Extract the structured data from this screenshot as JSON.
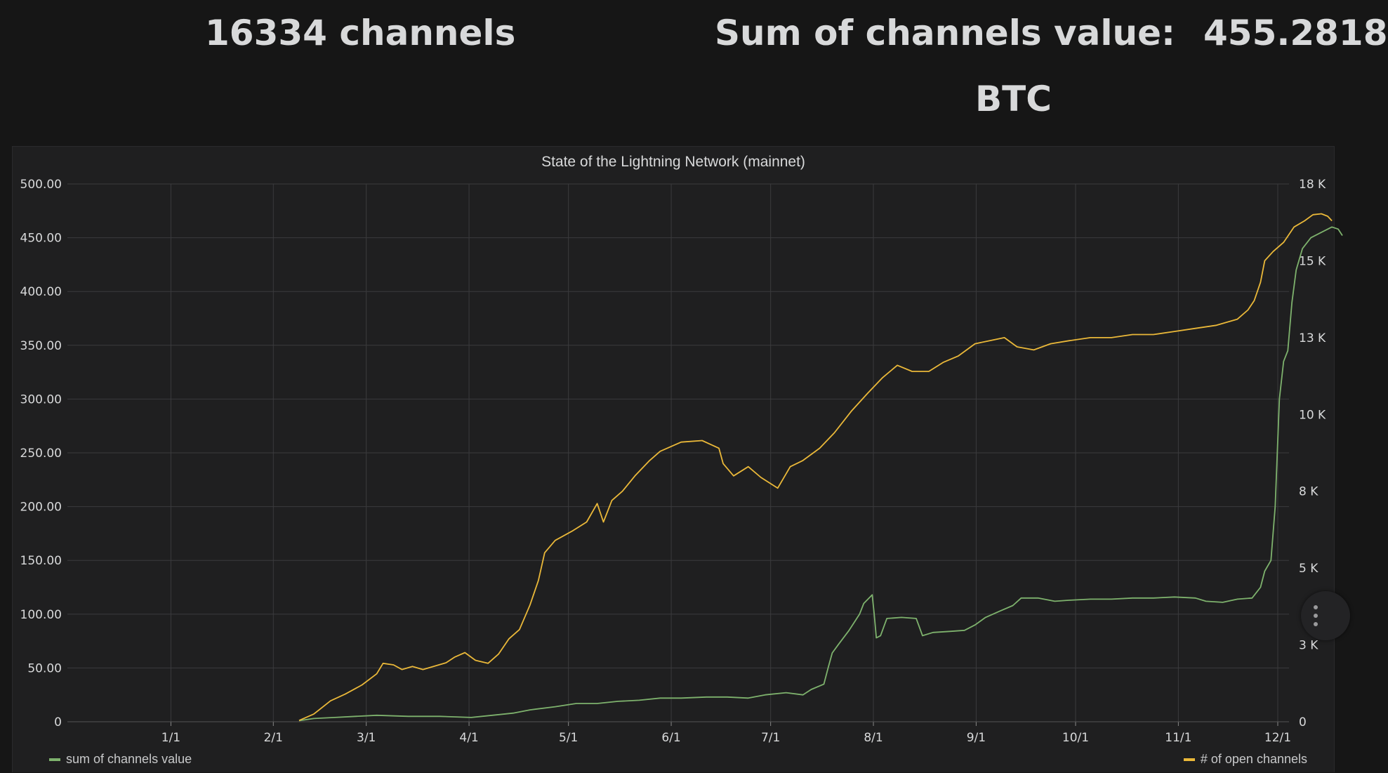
{
  "stats": {
    "channel_count_text": "16334 channels",
    "sum_label": "Sum of channels value:",
    "sum_value": "455.2818",
    "sum_unit": "BTC"
  },
  "colors": {
    "green": "#7eb26d",
    "yellow": "#eab839",
    "grid": "#3b3b3d",
    "text": "#d8d9da"
  },
  "chart_data": {
    "type": "line",
    "title": "State of the Lightning Network (mainnet)",
    "x_ticks": [
      "1/1",
      "2/1",
      "3/1",
      "4/1",
      "5/1",
      "6/1",
      "7/1",
      "8/1",
      "9/1",
      "10/1",
      "11/1",
      "12/1"
    ],
    "y_left_ticks": [
      "0",
      "50.00",
      "100.00",
      "150.00",
      "200.00",
      "250.00",
      "300.00",
      "350.00",
      "400.00",
      "450.00",
      "500.00"
    ],
    "y_left_range": [
      0,
      500
    ],
    "y_right_ticks": [
      "0",
      "3 K",
      "5 K",
      "8 K",
      "10 K",
      "13 K",
      "15 K",
      "18 K"
    ],
    "y_right_range": [
      0,
      17500
    ],
    "x_range_days": [
      0,
      334
    ],
    "series": [
      {
        "name": "sum of channels value",
        "axis": "left",
        "color": "#7eb26d",
        "points": [
          [
            18,
            1
          ],
          [
            25,
            3
          ],
          [
            35,
            4
          ],
          [
            45,
            5
          ],
          [
            55,
            6
          ],
          [
            70,
            5
          ],
          [
            85,
            5
          ],
          [
            100,
            4
          ],
          [
            110,
            6
          ],
          [
            120,
            8
          ],
          [
            128,
            11
          ],
          [
            140,
            14
          ],
          [
            150,
            17
          ],
          [
            160,
            17
          ],
          [
            170,
            19
          ],
          [
            180,
            20
          ],
          [
            190,
            22
          ],
          [
            200,
            22
          ],
          [
            212,
            23
          ],
          [
            222,
            23
          ],
          [
            232,
            22
          ],
          [
            240,
            25
          ],
          [
            250,
            27
          ],
          [
            258,
            25
          ],
          [
            262,
            30
          ],
          [
            268,
            35
          ],
          [
            270,
            50
          ],
          [
            272,
            64
          ],
          [
            275,
            72
          ],
          [
            280,
            85
          ],
          [
            285,
            100
          ],
          [
            287,
            110
          ],
          [
            291,
            118
          ],
          [
            292,
            100
          ],
          [
            293,
            78
          ],
          [
            295,
            80
          ],
          [
            298,
            96
          ],
          [
            305,
            97
          ],
          [
            312,
            96
          ],
          [
            315,
            80
          ],
          [
            320,
            83
          ],
          [
            328,
            84
          ],
          [
            335,
            85
          ],
          [
            340,
            90
          ],
          [
            345,
            97
          ],
          [
            352,
            103
          ],
          [
            358,
            108
          ],
          [
            362,
            115
          ],
          [
            370,
            115
          ],
          [
            378,
            112
          ],
          [
            385,
            113
          ],
          [
            395,
            114
          ],
          [
            405,
            114
          ],
          [
            415,
            115
          ],
          [
            425,
            115
          ],
          [
            435,
            116
          ],
          [
            445,
            115
          ],
          [
            450,
            112
          ],
          [
            458,
            111
          ],
          [
            465,
            114
          ],
          [
            472,
            115
          ],
          [
            476,
            125
          ],
          [
            478,
            140
          ],
          [
            481,
            150
          ],
          [
            483,
            200
          ],
          [
            485,
            300
          ],
          [
            487,
            335
          ],
          [
            489,
            345
          ],
          [
            491,
            390
          ],
          [
            493,
            420
          ],
          [
            496,
            440
          ],
          [
            500,
            450
          ],
          [
            505,
            455
          ],
          [
            510,
            460
          ],
          [
            513,
            458
          ],
          [
            515,
            452
          ]
        ]
      },
      {
        "name": "# of open channels",
        "axis": "right",
        "color": "#eab839",
        "points": [
          [
            18,
            40
          ],
          [
            25,
            250
          ],
          [
            33,
            680
          ],
          [
            40,
            900
          ],
          [
            48,
            1200
          ],
          [
            55,
            1560
          ],
          [
            58,
            1900
          ],
          [
            63,
            1850
          ],
          [
            67,
            1700
          ],
          [
            72,
            1800
          ],
          [
            77,
            1700
          ],
          [
            82,
            1800
          ],
          [
            88,
            1920
          ],
          [
            92,
            2100
          ],
          [
            97,
            2250
          ],
          [
            102,
            2000
          ],
          [
            108,
            1900
          ],
          [
            113,
            2200
          ],
          [
            118,
            2700
          ],
          [
            123,
            3000
          ],
          [
            128,
            3800
          ],
          [
            132,
            4600
          ],
          [
            135,
            5500
          ],
          [
            140,
            5900
          ],
          [
            148,
            6200
          ],
          [
            155,
            6500
          ],
          [
            160,
            7100
          ],
          [
            163,
            6500
          ],
          [
            167,
            7200
          ],
          [
            172,
            7500
          ],
          [
            178,
            8000
          ],
          [
            185,
            8500
          ],
          [
            190,
            8800
          ],
          [
            200,
            9100
          ],
          [
            210,
            9150
          ],
          [
            218,
            8900
          ],
          [
            220,
            8400
          ],
          [
            225,
            8000
          ],
          [
            232,
            8300
          ],
          [
            238,
            7950
          ],
          [
            246,
            7600
          ],
          [
            252,
            8300
          ],
          [
            258,
            8500
          ],
          [
            266,
            8900
          ],
          [
            273,
            9400
          ],
          [
            281,
            10100
          ],
          [
            289,
            10700
          ],
          [
            296,
            11200
          ],
          [
            303,
            11600
          ],
          [
            310,
            11400
          ],
          [
            318,
            11400
          ],
          [
            325,
            11700
          ],
          [
            332,
            11900
          ],
          [
            340,
            12300
          ],
          [
            347,
            12400
          ],
          [
            354,
            12500
          ],
          [
            360,
            12200
          ],
          [
            368,
            12100
          ],
          [
            376,
            12300
          ],
          [
            385,
            12400
          ],
          [
            395,
            12500
          ],
          [
            405,
            12500
          ],
          [
            415,
            12600
          ],
          [
            425,
            12600
          ],
          [
            435,
            12700
          ],
          [
            445,
            12800
          ],
          [
            455,
            12900
          ],
          [
            465,
            13100
          ],
          [
            470,
            13400
          ],
          [
            473,
            13700
          ],
          [
            476,
            14300
          ],
          [
            478,
            15000
          ],
          [
            482,
            15300
          ],
          [
            487,
            15600
          ],
          [
            492,
            16100
          ],
          [
            497,
            16300
          ],
          [
            501,
            16500
          ],
          [
            505,
            16530
          ],
          [
            508,
            16450
          ],
          [
            510,
            16300
          ]
        ]
      }
    ],
    "legend": [
      {
        "label": "sum of channels value",
        "color": "#7eb26d",
        "position": "bottom-left"
      },
      {
        "label": "# of open channels",
        "color": "#eab839",
        "position": "bottom-right"
      }
    ]
  }
}
